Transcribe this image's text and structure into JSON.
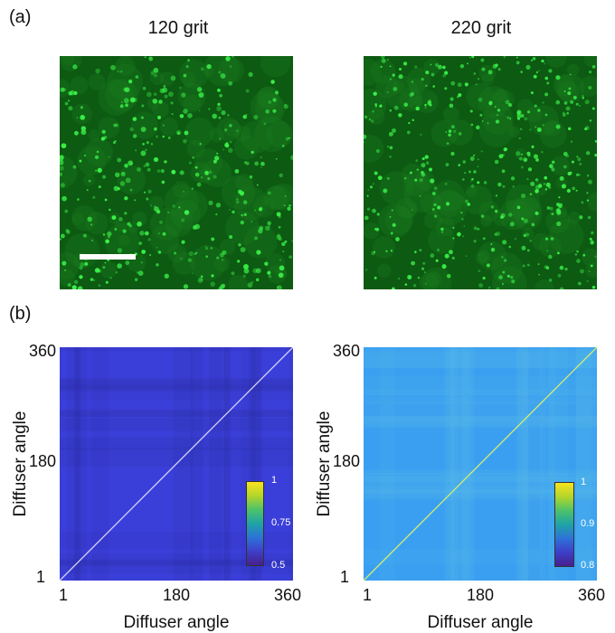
{
  "figure": {
    "panel_a_label": "(a)",
    "panel_b_label": "(b)",
    "columns": [
      {
        "title": "120 grit"
      },
      {
        "title": "220 grit"
      }
    ],
    "scale_bar_color": "#ffffff",
    "colors": {
      "speckle_background": "#0d5a12",
      "speckle_spot": "#3bf24a",
      "left_map": "#3b3fd9",
      "right_map": "#3a9ff0"
    }
  },
  "chart_data": [
    {
      "type": "heatmap",
      "title": "",
      "xlabel": "Diffuser angle",
      "ylabel": "Diffuser angle",
      "xlim": [
        1,
        360
      ],
      "ylim": [
        1,
        360
      ],
      "x_ticks": [
        "1",
        "180",
        "360"
      ],
      "y_ticks": [
        "1",
        "180",
        "360"
      ],
      "colorbar": {
        "min": 0.5,
        "max": 1,
        "ticks": [
          "1",
          "0.75",
          "0.5"
        ]
      },
      "diagonal_value": 1,
      "off_diagonal_value": 0.55
    },
    {
      "type": "heatmap",
      "title": "",
      "xlabel": "Diffuser angle",
      "ylabel": "Diffuser angle",
      "xlim": [
        1,
        360
      ],
      "ylim": [
        1,
        360
      ],
      "x_ticks": [
        "1",
        "180",
        "360"
      ],
      "y_ticks": [
        "1",
        "180",
        "360"
      ],
      "colorbar": {
        "min": 0.8,
        "max": 1,
        "ticks": [
          "1",
          "0.9",
          "0.8"
        ]
      },
      "diagonal_value": 1,
      "off_diagonal_value": 0.87
    }
  ]
}
